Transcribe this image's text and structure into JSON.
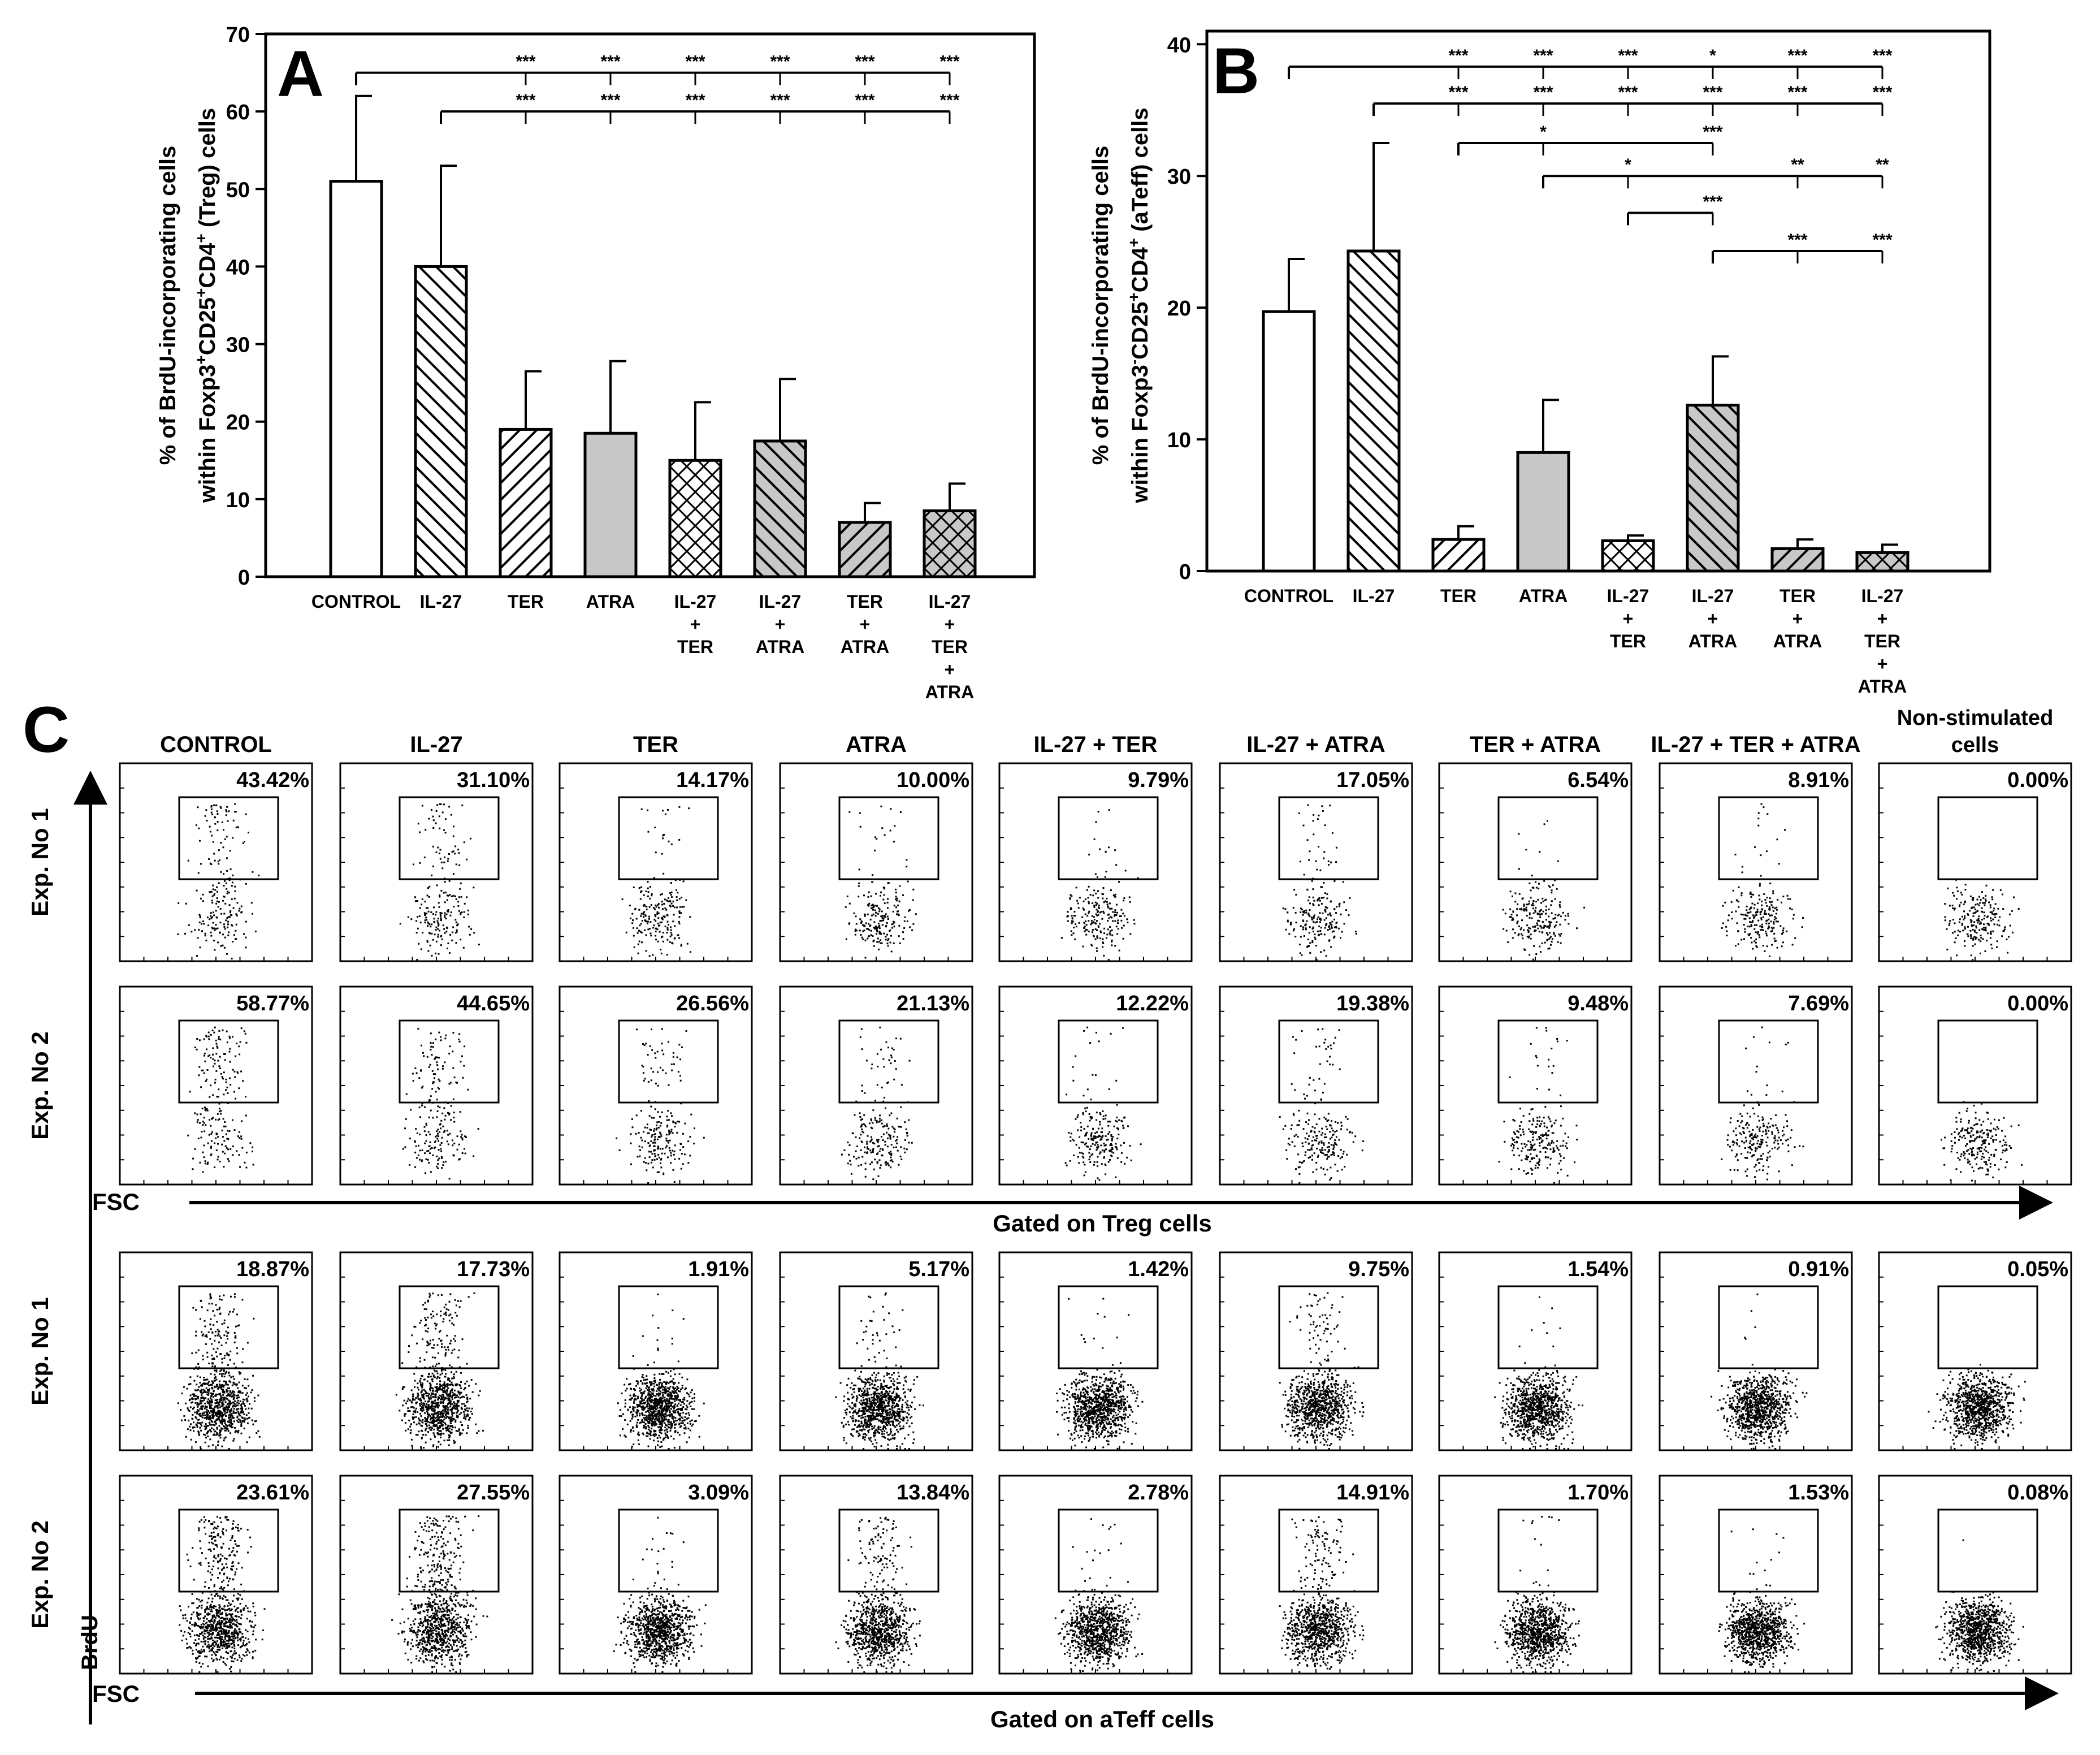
{
  "colors": {
    "ink": "#000000",
    "grey_fill": "#c8c8c8",
    "white": "#ffffff"
  },
  "chart_data": [
    {
      "panel": "A",
      "type": "bar",
      "ylabel_line1": "% of BrdU-incorporating cells",
      "ylabel_line2": "within Foxp3+CD25+CD4+ (Treg) cells",
      "ylim": [
        0,
        70
      ],
      "yticks": [
        "0",
        "10",
        "20",
        "30",
        "40",
        "50",
        "60",
        "70"
      ],
      "categories": [
        [
          "CONTROL"
        ],
        [
          "IL-27"
        ],
        [
          "TER"
        ],
        [
          "ATRA"
        ],
        [
          "IL-27",
          "+",
          "TER"
        ],
        [
          "IL-27",
          "+",
          "ATRA"
        ],
        [
          "TER",
          "+",
          "ATRA"
        ],
        [
          "IL-27",
          "+",
          "TER",
          "+",
          "ATRA"
        ]
      ],
      "values": [
        51,
        40,
        19,
        18.5,
        15,
        17.5,
        7,
        8.5
      ],
      "errors": [
        11,
        13,
        7.5,
        9.3,
        7.5,
        8,
        2.5,
        3.5
      ],
      "patterns": [
        "open",
        "backdiag",
        "fwddiag",
        "grey",
        "cross",
        "greydiag",
        "greyfwd",
        "greycross"
      ],
      "significance": [
        {
          "ref": 0,
          "y": 65,
          "targets": [
            2,
            3,
            4,
            5,
            6,
            7
          ],
          "labels": [
            "***",
            "***",
            "***",
            "***",
            "***",
            "***"
          ]
        },
        {
          "ref": 1,
          "y": 60,
          "targets": [
            2,
            3,
            4,
            5,
            6,
            7
          ],
          "labels": [
            "***",
            "***",
            "***",
            "***",
            "***",
            "***"
          ]
        }
      ]
    },
    {
      "panel": "B",
      "type": "bar",
      "ylabel_line1": "% of BrdU-incorporating cells",
      "ylabel_line2": "within Foxp3-CD25+CD4+ (aTeff) cells",
      "ylim": [
        0,
        41
      ],
      "yticks": [
        "0",
        "10",
        "20",
        "30",
        "40"
      ],
      "categories": [
        [
          "CONTROL"
        ],
        [
          "IL-27"
        ],
        [
          "TER"
        ],
        [
          "ATRA"
        ],
        [
          "IL-27",
          "+",
          "TER"
        ],
        [
          "IL-27",
          "+",
          "ATRA"
        ],
        [
          "TER",
          "+",
          "ATRA"
        ],
        [
          "IL-27",
          "+",
          "TER",
          "+",
          "ATRA"
        ]
      ],
      "values": [
        19.7,
        24.3,
        2.4,
        9,
        2.3,
        12.6,
        1.7,
        1.4
      ],
      "errors": [
        4,
        8.2,
        1,
        4,
        0.4,
        3.7,
        0.7,
        0.6
      ],
      "patterns": [
        "open",
        "backdiag",
        "fwddiag",
        "grey",
        "cross",
        "greydiag",
        "greyfwd",
        "greycross"
      ],
      "significance": [
        {
          "ref": 0,
          "y": 38.3,
          "targets": [
            2,
            3,
            4,
            5,
            6,
            7
          ],
          "labels": [
            "***",
            "***",
            "***",
            "*",
            "***",
            "***"
          ]
        },
        {
          "ref": 1,
          "y": 35.5,
          "targets": [
            2,
            3,
            4,
            5,
            6,
            7
          ],
          "labels": [
            "***",
            "***",
            "***",
            "***",
            "***",
            "***"
          ]
        },
        {
          "ref": 2,
          "y": 32.5,
          "targets": [
            3,
            5
          ],
          "labels": [
            "*",
            "***"
          ]
        },
        {
          "ref": 3,
          "y": 30,
          "targets": [
            4,
            6,
            7
          ],
          "labels": [
            "*",
            "**",
            "**"
          ]
        },
        {
          "ref": 4,
          "y": 27.2,
          "targets": [
            5
          ],
          "labels": [
            "***"
          ]
        },
        {
          "ref": 5,
          "y": 24.3,
          "targets": [
            6,
            7
          ],
          "labels": [
            "***",
            "***"
          ]
        }
      ]
    },
    {
      "panel": "C",
      "type": "scatter",
      "columns": [
        "CONTROL",
        "IL-27",
        "TER",
        "ATRA",
        "IL-27 + TER",
        "IL-27 + ATRA",
        "TER + ATRA",
        "IL-27 + TER + ATRA",
        "Non-stimulated cells"
      ],
      "row_labels": [
        "Exp. No 1",
        "Exp. No 2",
        "Exp. No 1",
        "Exp. No 2"
      ],
      "y_axis_label": "BrdU",
      "x_axis_label": "FSC",
      "group_labels": [
        "Gated on Treg cells",
        "Gated on aTeff cells"
      ],
      "gate_percentages": [
        [
          "43.42%",
          "31.10%",
          "14.17%",
          "10.00%",
          "9.79%",
          "17.05%",
          "6.54%",
          "8.91%",
          "0.00%"
        ],
        [
          "58.77%",
          "44.65%",
          "26.56%",
          "21.13%",
          "12.22%",
          "19.38%",
          "9.48%",
          "7.69%",
          "0.00%"
        ],
        [
          "18.87%",
          "17.73%",
          "1.91%",
          "5.17%",
          "1.42%",
          "9.75%",
          "1.54%",
          "0.91%",
          "0.05%"
        ],
        [
          "23.61%",
          "27.55%",
          "3.09%",
          "13.84%",
          "2.78%",
          "14.91%",
          "1.70%",
          "1.53%",
          "0.08%"
        ]
      ]
    }
  ]
}
